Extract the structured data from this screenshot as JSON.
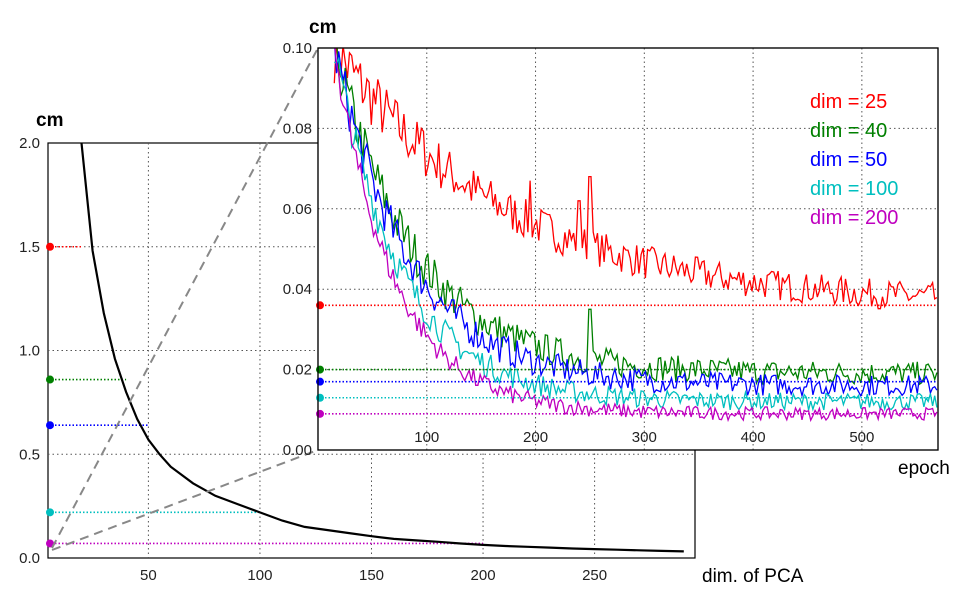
{
  "chart_data": [
    {
      "type": "line",
      "ylabel": "cm",
      "xlabel": "dim. of PCA",
      "xlim": [
        5,
        295
      ],
      "ylim": [
        0.0,
        2.0
      ],
      "xticks": [
        50,
        100,
        150,
        200,
        250
      ],
      "yticks": [
        0.0,
        0.5,
        1.0,
        1.5,
        2.0
      ],
      "ytick_labels": [
        "0.0",
        "0.5",
        "1.0",
        "1.5",
        "2.0"
      ],
      "grid": true,
      "series": [
        {
          "color": "#000000",
          "x": [
            20,
            25,
            30,
            35,
            40,
            45,
            50,
            55,
            60,
            70,
            80,
            90,
            100,
            110,
            120,
            130,
            140,
            150,
            160,
            170,
            180,
            190,
            200,
            210,
            220,
            230,
            240,
            250,
            260,
            270,
            280,
            290
          ],
          "values": [
            2.0,
            1.48,
            1.18,
            0.96,
            0.8,
            0.67,
            0.57,
            0.5,
            0.44,
            0.36,
            0.3,
            0.26,
            0.22,
            0.18,
            0.15,
            0.135,
            0.12,
            0.105,
            0.092,
            0.085,
            0.078,
            0.07,
            0.063,
            0.058,
            0.054,
            0.05,
            0.046,
            0.043,
            0.04,
            0.037,
            0.034,
            0.032
          ]
        }
      ],
      "reference_lines": [
        {
          "color": "#ff0000",
          "y": 1.5,
          "x_end": 20
        },
        {
          "color": "#008000",
          "y": 0.86,
          "x_end": 40
        },
        {
          "color": "#0000ff",
          "y": 0.64,
          "x_end": 50
        },
        {
          "color": "#00bfbf",
          "y": 0.22,
          "x_end": 100
        },
        {
          "color": "#bf00bf",
          "y": 0.07,
          "x_end": 200
        }
      ]
    },
    {
      "type": "line",
      "ylabel": "cm",
      "xlabel": "epoch",
      "xlim": [
        0,
        570
      ],
      "ylim": [
        0.0,
        0.1
      ],
      "xticks": [
        100,
        200,
        300,
        400,
        500
      ],
      "yticks": [
        0.0,
        0.02,
        0.04,
        0.06,
        0.08,
        0.1
      ],
      "ytick_labels": [
        "0.00",
        "0.02",
        "0.04",
        "0.06",
        "0.08",
        "0.10"
      ],
      "grid": true,
      "legend_position": "top-right",
      "series": [
        {
          "name": "dim = 25",
          "color": "#ff0000",
          "start": 0.1,
          "end": 0.036,
          "tau": 160,
          "noise": 0.0035,
          "ref": 0.036,
          "spikes": [
            [
              95,
              0.08
            ],
            [
              195,
              0.067
            ],
            [
              240,
              0.062
            ],
            [
              250,
              0.068
            ]
          ]
        },
        {
          "name": "dim = 40",
          "color": "#008000",
          "start": 0.1,
          "end": 0.019,
          "tau": 75,
          "noise": 0.0028,
          "ref": 0.02,
          "spikes": [
            [
              250,
              0.035
            ]
          ]
        },
        {
          "name": "dim = 50",
          "color": "#0000ff",
          "start": 0.1,
          "end": 0.016,
          "tau": 70,
          "noise": 0.0025,
          "ref": 0.017,
          "spikes": []
        },
        {
          "name": "dim = 100",
          "color": "#00bfbf",
          "start": 0.1,
          "end": 0.012,
          "tau": 62,
          "noise": 0.002,
          "ref": 0.013,
          "spikes": []
        },
        {
          "name": "dim = 200",
          "color": "#bf00bf",
          "start": 0.1,
          "end": 0.009,
          "tau": 55,
          "noise": 0.0015,
          "ref": 0.009,
          "spikes": []
        }
      ]
    }
  ]
}
